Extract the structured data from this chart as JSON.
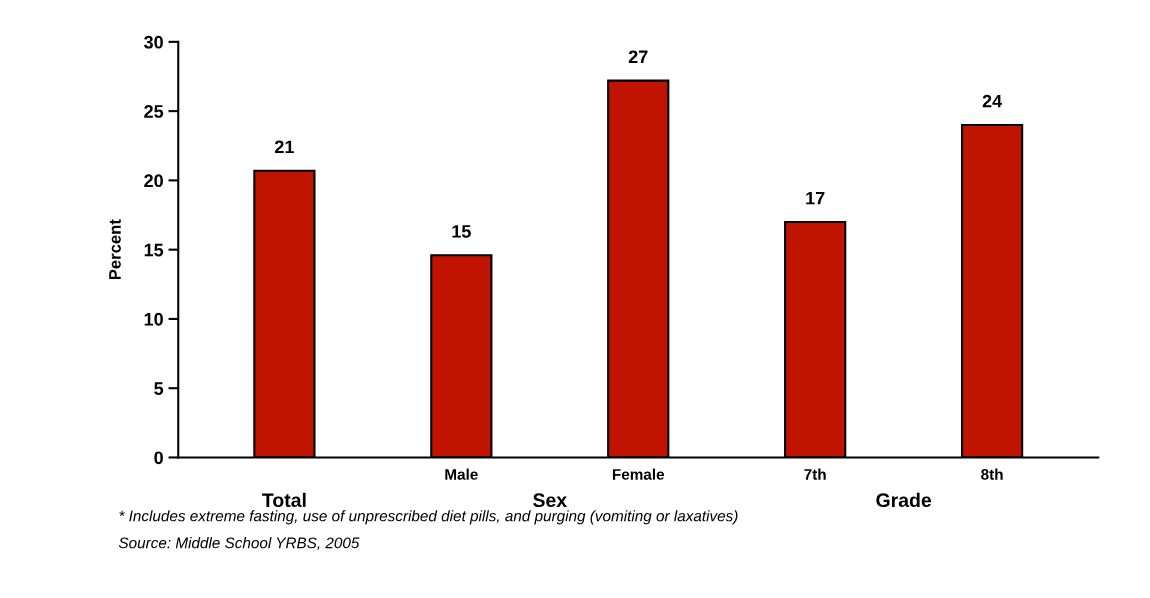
{
  "chart_data": {
    "type": "bar",
    "ylabel": "Percent",
    "categories": [
      null,
      "Male",
      "Female",
      "7th",
      "8th"
    ],
    "values": [
      20.7,
      14.6,
      27.2,
      17.0,
      24.0
    ],
    "value_labels": [
      "21",
      "15",
      "27",
      "17",
      "24"
    ],
    "color": "#c01400",
    "ylim": [
      0,
      30
    ],
    "yticks": [
      0,
      5,
      10,
      15,
      20,
      25,
      30
    ],
    "grid": false,
    "legend": false,
    "annotations": [
      "Total",
      "Sex",
      "Grade",
      "* Includes extreme fasting, use of unprescribed diet pills, and purging (vomiting or laxatives)",
      "Source: Middle School YRBS, 2005"
    ]
  }
}
